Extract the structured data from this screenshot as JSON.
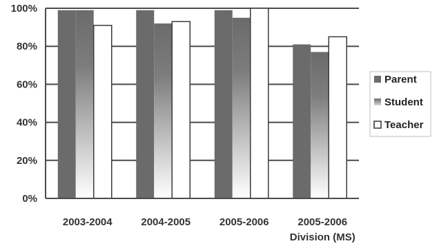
{
  "chart_data": {
    "type": "bar",
    "title": "",
    "xlabel": "",
    "ylabel": "",
    "ylim": [
      0,
      100
    ],
    "y_ticks": [
      "0%",
      "20%",
      "40%",
      "60%",
      "80%",
      "100%"
    ],
    "y_tick_values": [
      0,
      20,
      40,
      60,
      80,
      100
    ],
    "grid": true,
    "legend_position": "right",
    "categories": [
      [
        "2003-2004"
      ],
      [
        "2004-2005"
      ],
      [
        "2005-2006"
      ],
      [
        "2005-2006",
        "Division (MS)"
      ]
    ],
    "series": [
      {
        "name": "Parent",
        "values": [
          99,
          99,
          99,
          81
        ]
      },
      {
        "name": "Student",
        "values": [
          99,
          92,
          95,
          77
        ]
      },
      {
        "name": "Teacher",
        "values": [
          91,
          93,
          100,
          85
        ]
      }
    ],
    "colors": {
      "parent": "#6b6b6b",
      "student_top": "#6b6b6b",
      "student_bottom": "#ffffff",
      "teacher": "#ffffff",
      "outline": "#3a3a3a",
      "grid": "#4a4a4a"
    }
  }
}
